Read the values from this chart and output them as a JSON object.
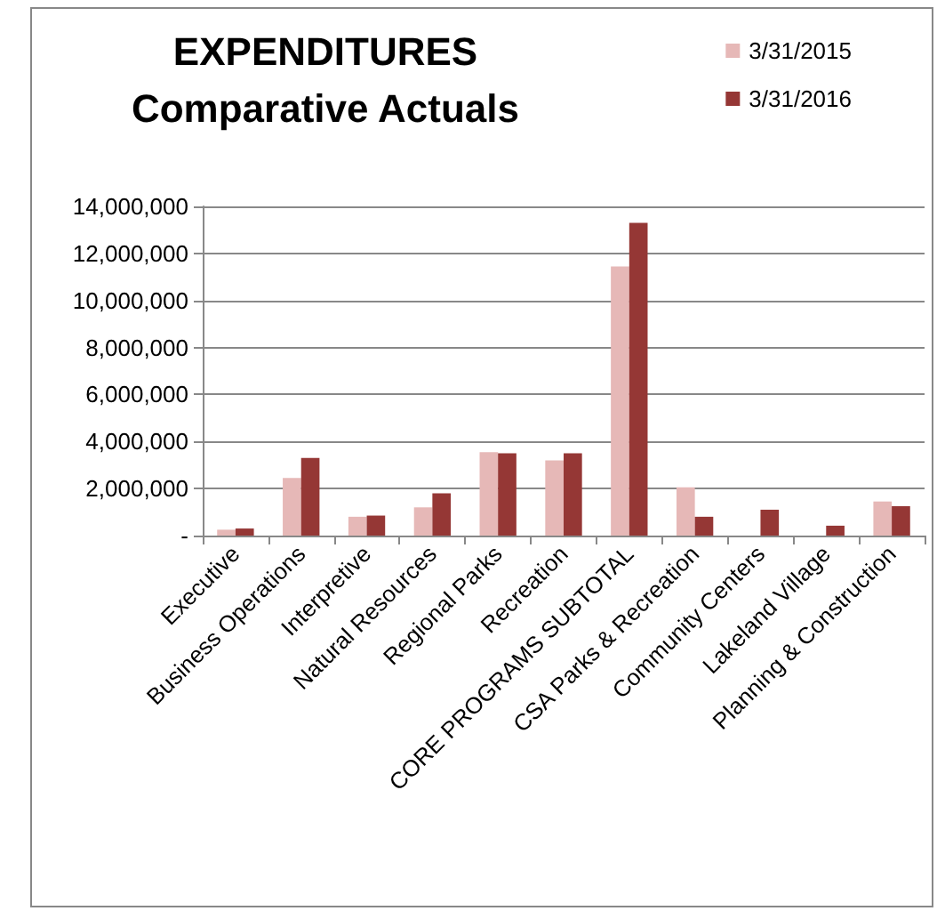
{
  "chart_data": {
    "type": "bar",
    "title": "EXPENDITURES",
    "subtitle": "Comparative Actuals",
    "categories": [
      "Executive",
      "Business Operations",
      "Interpretive",
      "Natural Resources",
      "Regional Parks",
      "Recreation",
      "CORE PROGRAMS SUBTOTAL",
      "CSA Parks & Recreation",
      "Community Centers",
      "Lakeland Village",
      "Planning & Construction"
    ],
    "series": [
      {
        "name": "3/31/2015",
        "color": "#e6b8b7",
        "values": [
          250000,
          2450000,
          800000,
          1200000,
          3550000,
          3200000,
          11450000,
          2050000,
          0,
          0,
          1450000
        ]
      },
      {
        "name": "3/31/2016",
        "color": "#953735",
        "values": [
          300000,
          3300000,
          850000,
          1800000,
          3500000,
          3500000,
          13300000,
          800000,
          1100000,
          420000,
          1250000
        ]
      }
    ],
    "ylim": [
      0,
      14000000
    ],
    "yticks": [
      {
        "value": 0,
        "label": "-"
      },
      {
        "value": 2000000,
        "label": "2,000,000"
      },
      {
        "value": 4000000,
        "label": "4,000,000"
      },
      {
        "value": 6000000,
        "label": "6,000,000"
      },
      {
        "value": 8000000,
        "label": "8,000,000"
      },
      {
        "value": 10000000,
        "label": "10,000,000"
      },
      {
        "value": 12000000,
        "label": "12,000,000"
      },
      {
        "value": 14000000,
        "label": "14,000,000"
      }
    ],
    "grid": "y",
    "legend": "top right"
  }
}
